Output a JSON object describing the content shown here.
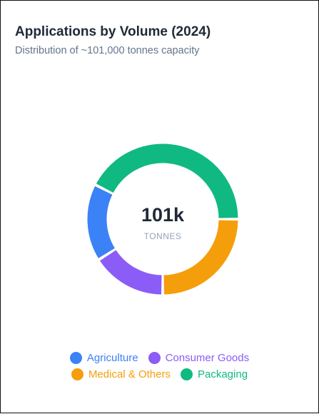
{
  "card": {
    "title": "Applications by Volume (2024)",
    "subtitle": "Distribution of ~101,000 tonnes capacity"
  },
  "chart_data": {
    "type": "pie",
    "variant": "donut",
    "title": "Applications by Volume (2024)",
    "subtitle": "Distribution of ~101,000 tonnes capacity",
    "center_value": "101k",
    "center_unit": "TONNES",
    "series": [
      {
        "name": "Agriculture",
        "share_pct": 16.5,
        "color": "#3b82f6"
      },
      {
        "name": "Consumer Goods",
        "share_pct": 16.0,
        "color": "#8b5cf6"
      },
      {
        "name": "Medical & Others",
        "share_pct": 25.0,
        "color": "#f59e0b"
      },
      {
        "name": "Packaging",
        "share_pct": 42.5,
        "color": "#10b981"
      }
    ],
    "legend": "bottom-center"
  }
}
